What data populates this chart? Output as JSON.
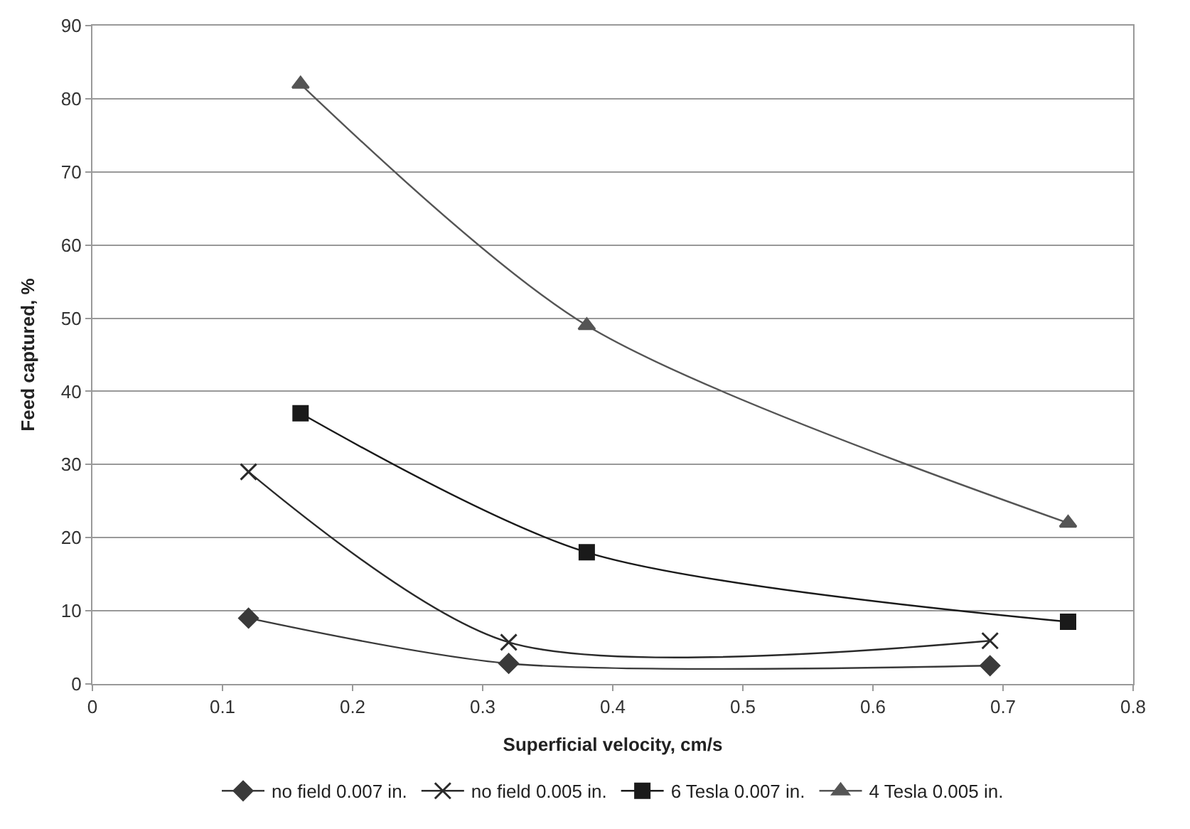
{
  "chart_data": {
    "type": "line",
    "xlabel": "Superficial velocity, cm/s",
    "ylabel": "Feed captured, %",
    "xlim": [
      0,
      0.8
    ],
    "xticks": [
      0,
      0.1,
      0.2,
      0.3,
      0.4,
      0.5,
      0.6,
      0.7,
      0.8
    ],
    "ylim": [
      0,
      90
    ],
    "yticks": [
      0,
      10,
      20,
      30,
      40,
      50,
      60,
      70,
      80,
      90
    ],
    "grid": "y",
    "legend": "bottom",
    "line_style": "solid",
    "series": [
      {
        "name": "no field 0.007 in.",
        "color": "#3a3a3a",
        "marker": "diamond",
        "x": [
          0.12,
          0.32,
          0.69
        ],
        "values": [
          9,
          2.8,
          2.5
        ]
      },
      {
        "name": "no field 0.005 in.",
        "color": "#2a2a2a",
        "marker": "cross",
        "x": [
          0.12,
          0.32,
          0.69
        ],
        "values": [
          29,
          5.7,
          5.9
        ]
      },
      {
        "name": "6 Tesla 0.007 in.",
        "color": "#1a1a1a",
        "marker": "square",
        "x": [
          0.16,
          0.38,
          0.75
        ],
        "values": [
          37,
          18,
          8.5
        ]
      },
      {
        "name": "4 Tesla 0.005 in.",
        "color": "#555555",
        "marker": "triangle",
        "x": [
          0.16,
          0.38,
          0.75
        ],
        "values": [
          82,
          49,
          22
        ]
      }
    ]
  }
}
